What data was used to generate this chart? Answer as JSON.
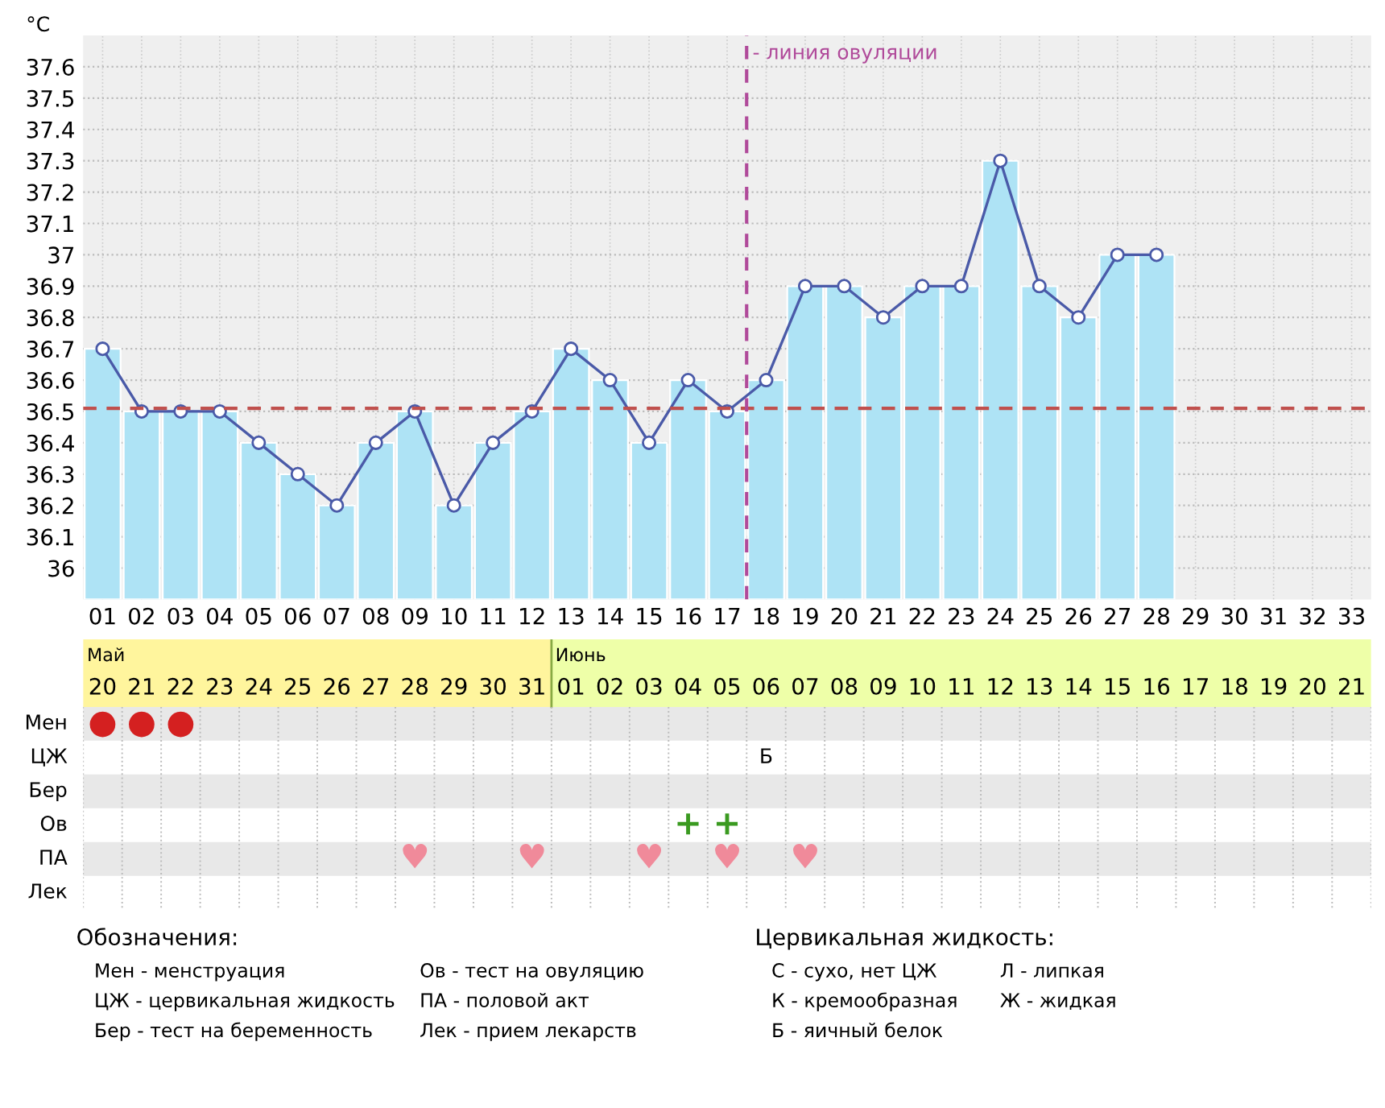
{
  "chart_data": [
    {
      "type": "bar",
      "ylabel": "°C",
      "categories": [
        "01",
        "02",
        "03",
        "04",
        "05",
        "06",
        "07",
        "08",
        "09",
        "10",
        "11",
        "12",
        "13",
        "14",
        "15",
        "16",
        "17",
        "18",
        "19",
        "20",
        "21",
        "22",
        "23",
        "24",
        "25",
        "26",
        "27",
        "28",
        "29",
        "30",
        "31",
        "32",
        "33"
      ],
      "series": [
        {
          "color": "#aee3f5",
          "values": [
            36.7,
            36.5,
            36.5,
            36.5,
            36.4,
            36.3,
            36.2,
            36.4,
            36.5,
            36.2,
            36.4,
            36.5,
            36.7,
            36.6,
            36.4,
            36.6,
            36.5,
            36.6,
            36.9,
            36.9,
            36.8,
            36.9,
            36.9,
            37.3,
            36.9,
            36.8,
            37.0,
            37.0,
            null,
            null,
            null,
            null,
            null
          ]
        },
        {
          "type": "line",
          "color": "#4a5aa8",
          "marker": "circle",
          "values": [
            36.7,
            36.5,
            36.5,
            36.5,
            36.4,
            36.3,
            36.2,
            36.4,
            36.5,
            36.2,
            36.4,
            36.5,
            36.7,
            36.6,
            36.4,
            36.6,
            36.5,
            36.6,
            36.9,
            36.9,
            36.8,
            36.9,
            36.9,
            37.3,
            36.9,
            36.8,
            37.0,
            37.0,
            null,
            null,
            null,
            null,
            null
          ]
        }
      ],
      "ylim": [
        35.9,
        37.7
      ],
      "yticks": [
        36,
        36.1,
        36.2,
        36.3,
        36.4,
        36.5,
        36.6,
        36.7,
        36.8,
        36.9,
        {
          "value": 37,
          "label": "37"
        },
        37.1,
        37.2,
        37.3,
        37.4,
        37.5,
        37.6
      ],
      "grid": true,
      "ref_lines": [
        {
          "axis": "y",
          "value": 36.51,
          "color": "#c0504d",
          "line_style": "dashed"
        },
        {
          "axis": "x",
          "value": "18",
          "label": "- линия овуляции",
          "color": "#b04a9a",
          "line_style": "dashed"
        }
      ]
    },
    {
      "type": "heatmap",
      "categories": [
        "20",
        "21",
        "22",
        "23",
        "24",
        "25",
        "26",
        "27",
        "28",
        "29",
        "30",
        "31",
        "01",
        "02",
        "03",
        "04",
        "05",
        "06",
        "07",
        "08",
        "09",
        "10",
        "11",
        "12",
        "13",
        "14",
        "15",
        "16",
        "17",
        "18",
        "19",
        "20",
        "21"
      ],
      "y_categories": [
        "Мен",
        "ЦЖ",
        "Бер",
        "Ов",
        "ПА",
        "Лек"
      ],
      "cells": [
        [
          null,
          null,
          null,
          null,
          null,
          null,
          null,
          null,
          null,
          null,
          null,
          null,
          null,
          null,
          null,
          null,
          null,
          null,
          null,
          null,
          null,
          null,
          null,
          null,
          null,
          null,
          null,
          null,
          null,
          null,
          null,
          null,
          null
        ],
        [
          null,
          null,
          null,
          null,
          null,
          null,
          null,
          null,
          null,
          null,
          null,
          null,
          null,
          null,
          null,
          null,
          null,
          null,
          null,
          null,
          null,
          null,
          null,
          null,
          null,
          null,
          null,
          null,
          null,
          null,
          null,
          null,
          null
        ],
        [
          null,
          null,
          null,
          null,
          null,
          null,
          null,
          null,
          null,
          null,
          null,
          null,
          null,
          null,
          null,
          null,
          null,
          null,
          null,
          null,
          null,
          null,
          null,
          null,
          null,
          null,
          null,
          null,
          null,
          null,
          null,
          null,
          null
        ],
        [
          null,
          null,
          null,
          null,
          null,
          null,
          null,
          null,
          null,
          null,
          null,
          null,
          null,
          null,
          null,
          null,
          null,
          null,
          null,
          null,
          null,
          null,
          null,
          null,
          null,
          null,
          null,
          null,
          null,
          null,
          null,
          null,
          null
        ],
        [
          null,
          null,
          null,
          null,
          null,
          null,
          null,
          null,
          null,
          null,
          null,
          null,
          null,
          null,
          null,
          null,
          null,
          null,
          null,
          null,
          null,
          null,
          null,
          null,
          null,
          null,
          null,
          null,
          null,
          null,
          null,
          null,
          null
        ],
        [
          null,
          null,
          null,
          null,
          null,
          null,
          null,
          null,
          null,
          null,
          null,
          null,
          null,
          null,
          null,
          null,
          null,
          null,
          null,
          null,
          null,
          null,
          null,
          null,
          null,
          null,
          null,
          null,
          null,
          null,
          null,
          null,
          null
        ]
      ],
      "cell_labels": [
        [
          "●",
          "●",
          "●",
          null,
          null,
          null,
          null,
          null,
          null,
          null,
          null,
          null,
          null,
          null,
          null,
          null,
          null,
          null,
          null,
          null,
          null,
          null,
          null,
          null,
          null,
          null,
          null,
          null,
          null,
          null,
          null,
          null,
          null
        ],
        [
          null,
          null,
          null,
          null,
          null,
          null,
          null,
          null,
          null,
          null,
          null,
          null,
          null,
          null,
          null,
          null,
          null,
          "Б",
          null,
          null,
          null,
          null,
          null,
          null,
          null,
          null,
          null,
          null,
          null,
          null,
          null,
          null,
          null
        ],
        [
          null,
          null,
          null,
          null,
          null,
          null,
          null,
          null,
          null,
          null,
          null,
          null,
          null,
          null,
          null,
          null,
          null,
          null,
          null,
          null,
          null,
          null,
          null,
          null,
          null,
          null,
          null,
          null,
          null,
          null,
          null,
          null,
          null
        ],
        [
          null,
          null,
          null,
          null,
          null,
          null,
          null,
          null,
          null,
          null,
          null,
          null,
          null,
          null,
          null,
          "+",
          "+",
          null,
          null,
          null,
          null,
          null,
          null,
          null,
          null,
          null,
          null,
          null,
          null,
          null,
          null,
          null,
          null
        ],
        [
          null,
          null,
          null,
          null,
          null,
          null,
          null,
          null,
          "♥",
          null,
          null,
          "♥",
          null,
          null,
          "♥",
          null,
          "♥",
          null,
          "♥",
          null,
          null,
          null,
          null,
          null,
          null,
          null,
          null,
          null,
          null,
          null,
          null,
          null,
          null
        ],
        [
          null,
          null,
          null,
          null,
          null,
          null,
          null,
          null,
          null,
          null,
          null,
          null,
          null,
          null,
          null,
          null,
          null,
          null,
          null,
          null,
          null,
          null,
          null,
          null,
          null,
          null,
          null,
          null,
          null,
          null,
          null,
          null,
          null
        ]
      ],
      "annotations": [
        "Май",
        "Июнь",
        "Обозначения:",
        "Мен - менструация",
        "ЦЖ - цервикальная жидкость",
        "Бер - тест на беременность",
        "Ов - тест на овуляцию",
        "ПА - половой акт",
        "Лек - прием лекарств",
        "Цервикальная жидкость:",
        "С - сухо, нет ЦЖ",
        "К - кремообразная",
        "Б - яичный белок",
        "Л - липкая",
        "Ж - жидкая"
      ]
    }
  ]
}
